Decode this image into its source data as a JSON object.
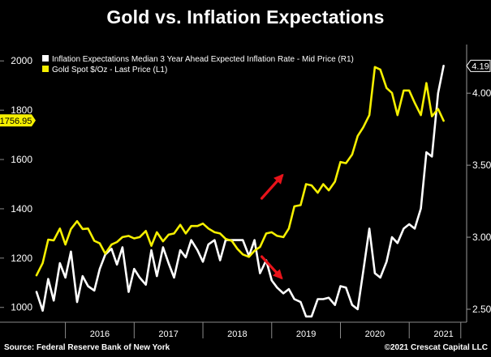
{
  "title": "Gold vs. Inflation Expectations",
  "footer": {
    "source": "Source: Federal Reserve Bank of New York",
    "credit": "©2021 Crescat Capital LLC"
  },
  "colors": {
    "background": "#000000",
    "gold": "#f5ef00",
    "inflation": "#ffffff",
    "arrow": "#e8131a",
    "tag_left_bg": "#f5ef00",
    "tag_right_border": "#ffffff"
  },
  "chart_data": {
    "type": "line",
    "legend_position": "top-left",
    "grid": false,
    "x_unit": "year",
    "xlim": [
      2015.58,
      2021.8
    ],
    "x_categories": [
      "2016",
      "2017",
      "2018",
      "2019",
      "2020",
      "2021"
    ],
    "y_left": {
      "ylim": [
        940,
        2050
      ],
      "ticks": [
        1000,
        1200,
        1400,
        1600,
        1800,
        2000
      ]
    },
    "y_right": {
      "ylim": [
        2.41,
        4.31
      ],
      "ticks": [
        2.5,
        3.0,
        3.5,
        4.0
      ],
      "tick_labels": [
        "2.50",
        "3.00",
        "3.50",
        "4.00"
      ]
    },
    "last_value_tags": {
      "left": "1756.95",
      "right": "4.19"
    },
    "series": [
      {
        "name": "Inflation Expectations Median 3 Year Ahead Expected Inflation Rate - Mid Price (R1)",
        "axis": "right",
        "color": "#ffffff",
        "x": [
          2015.58,
          2015.67,
          2015.75,
          2015.83,
          2015.92,
          2016.0,
          2016.08,
          2016.17,
          2016.25,
          2016.33,
          2016.42,
          2016.5,
          2016.58,
          2016.67,
          2016.75,
          2016.83,
          2016.92,
          2017.0,
          2017.08,
          2017.17,
          2017.25,
          2017.33,
          2017.42,
          2017.5,
          2017.58,
          2017.67,
          2017.75,
          2017.83,
          2017.92,
          2018.0,
          2018.08,
          2018.17,
          2018.25,
          2018.33,
          2018.42,
          2018.5,
          2018.58,
          2018.67,
          2018.75,
          2018.83,
          2018.92,
          2019.0,
          2019.08,
          2019.17,
          2019.25,
          2019.33,
          2019.42,
          2019.5,
          2019.58,
          2019.67,
          2019.75,
          2019.83,
          2019.92,
          2020.0,
          2020.08,
          2020.17,
          2020.25,
          2020.33,
          2020.42,
          2020.5,
          2020.58,
          2020.67,
          2020.75,
          2020.83,
          2020.92,
          2021.0,
          2021.08,
          2021.17,
          2021.25,
          2021.33,
          2021.42,
          2021.5
        ],
        "values": [
          2.62,
          2.49,
          2.71,
          2.56,
          2.82,
          2.72,
          2.9,
          2.55,
          2.73,
          2.66,
          2.63,
          2.78,
          2.88,
          2.92,
          2.81,
          2.93,
          2.62,
          2.78,
          2.72,
          2.67,
          2.91,
          2.73,
          2.93,
          2.82,
          2.72,
          2.91,
          2.86,
          2.98,
          2.91,
          2.83,
          2.95,
          2.98,
          2.84,
          2.98,
          2.98,
          2.98,
          2.98,
          2.87,
          2.98,
          2.75,
          2.84,
          2.7,
          2.65,
          2.61,
          2.64,
          2.57,
          2.55,
          2.45,
          2.45,
          2.57,
          2.57,
          2.58,
          2.53,
          2.66,
          2.65,
          2.53,
          2.5,
          2.76,
          3.06,
          2.75,
          2.72,
          2.83,
          3.0,
          2.96,
          3.06,
          3.09,
          3.06,
          3.2,
          3.59,
          3.56,
          4.0,
          4.19
        ]
      },
      {
        "name": "Gold Spot   $/Oz - Last Price (L1)",
        "axis": "left",
        "color": "#f5ef00",
        "x": [
          2015.58,
          2015.67,
          2015.75,
          2015.83,
          2015.92,
          2016.0,
          2016.08,
          2016.17,
          2016.25,
          2016.33,
          2016.42,
          2016.5,
          2016.58,
          2016.67,
          2016.75,
          2016.83,
          2016.92,
          2017.0,
          2017.08,
          2017.17,
          2017.25,
          2017.33,
          2017.42,
          2017.5,
          2017.58,
          2017.67,
          2017.75,
          2017.83,
          2017.92,
          2018.0,
          2018.08,
          2018.17,
          2018.25,
          2018.33,
          2018.42,
          2018.5,
          2018.58,
          2018.67,
          2018.75,
          2018.83,
          2018.92,
          2019.0,
          2019.08,
          2019.17,
          2019.25,
          2019.33,
          2019.42,
          2019.5,
          2019.58,
          2019.67,
          2019.75,
          2019.83,
          2019.92,
          2020.0,
          2020.08,
          2020.17,
          2020.25,
          2020.33,
          2020.42,
          2020.5,
          2020.58,
          2020.67,
          2020.75,
          2020.83,
          2020.92,
          2021.0,
          2021.08,
          2021.17,
          2021.25,
          2021.33,
          2021.42,
          2021.5
        ],
        "values": [
          1130,
          1180,
          1275,
          1272,
          1320,
          1255,
          1318,
          1350,
          1318,
          1320,
          1270,
          1260,
          1218,
          1255,
          1265,
          1285,
          1290,
          1280,
          1285,
          1310,
          1250,
          1305,
          1268,
          1295,
          1300,
          1335,
          1300,
          1330,
          1330,
          1340,
          1320,
          1305,
          1300,
          1278,
          1270,
          1238,
          1215,
          1205,
          1230,
          1245,
          1300,
          1305,
          1290,
          1285,
          1320,
          1410,
          1415,
          1500,
          1495,
          1465,
          1500,
          1475,
          1510,
          1590,
          1585,
          1620,
          1695,
          1730,
          1780,
          1975,
          1965,
          1890,
          1870,
          1780,
          1880,
          1880,
          1830,
          1780,
          1910,
          1775,
          1805,
          1756.95
        ]
      }
    ],
    "annotations": [
      {
        "type": "arrow",
        "direction": "up-right",
        "color": "#e8131a",
        "near_x": 2019.08
      },
      {
        "type": "arrow",
        "direction": "down-right",
        "color": "#e8131a",
        "near_x": 2019.08
      }
    ]
  }
}
